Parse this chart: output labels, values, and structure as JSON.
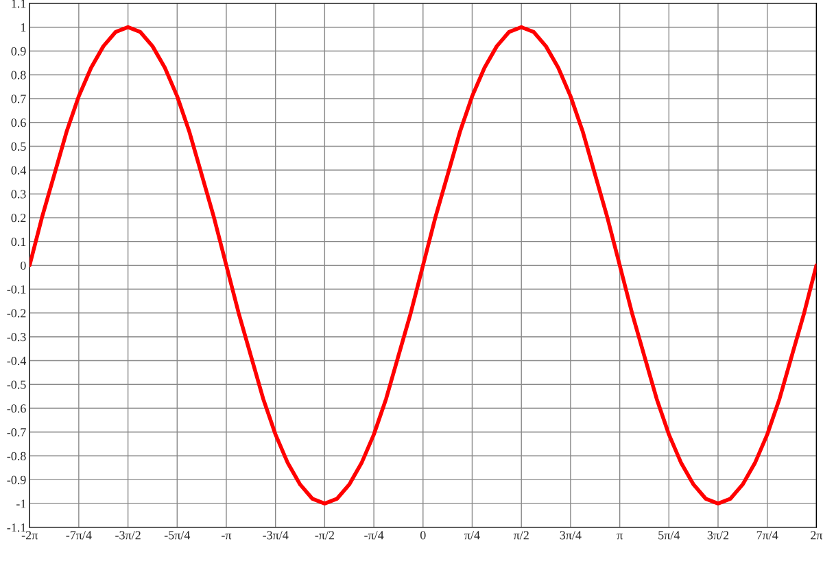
{
  "chart_data": {
    "type": "line",
    "x": [
      -6.283,
      -6.087,
      -5.89,
      -5.694,
      -5.498,
      -5.301,
      -5.105,
      -4.909,
      -4.712,
      -4.516,
      -4.32,
      -4.123,
      -3.927,
      -3.731,
      -3.534,
      -3.338,
      -3.142,
      -2.945,
      -2.749,
      -2.553,
      -2.356,
      -2.16,
      -1.963,
      -1.767,
      -1.571,
      -1.374,
      -1.178,
      -0.982,
      -0.785,
      -0.589,
      -0.393,
      -0.196,
      0,
      0.196,
      0.393,
      0.589,
      0.785,
      0.982,
      1.178,
      1.374,
      1.571,
      1.767,
      1.963,
      2.16,
      2.356,
      2.553,
      2.749,
      2.945,
      3.142,
      3.338,
      3.534,
      3.731,
      3.927,
      4.123,
      4.32,
      4.516,
      4.712,
      4.909,
      5.105,
      5.301,
      5.498,
      5.694,
      5.89,
      6.087,
      6.283
    ],
    "series": [
      {
        "color": "#ff0000",
        "values": [
          0,
          0.2,
          0.38,
          0.56,
          0.71,
          0.83,
          0.92,
          0.98,
          1,
          0.98,
          0.92,
          0.83,
          0.71,
          0.56,
          0.38,
          0.2,
          0,
          -0.2,
          -0.38,
          -0.56,
          -0.71,
          -0.83,
          -0.92,
          -0.98,
          -1,
          -0.98,
          -0.92,
          -0.83,
          -0.71,
          -0.56,
          -0.38,
          -0.2,
          0,
          0.2,
          0.38,
          0.56,
          0.71,
          0.83,
          0.92,
          0.98,
          1,
          0.98,
          0.92,
          0.83,
          0.71,
          0.56,
          0.38,
          0.2,
          0,
          -0.2,
          -0.38,
          -0.56,
          -0.71,
          -0.83,
          -0.92,
          -0.98,
          -1,
          -0.98,
          -0.92,
          -0.83,
          -0.71,
          -0.56,
          -0.38,
          -0.2,
          0
        ]
      }
    ],
    "xlim": [
      -6.283,
      6.283
    ],
    "xticks": [
      {
        "value": -6.283,
        "label": "-2π"
      },
      {
        "value": -5.498,
        "label": "-7π/4"
      },
      {
        "value": -4.712,
        "label": "-3π/2"
      },
      {
        "value": -3.927,
        "label": "-5π/4"
      },
      {
        "value": -3.142,
        "label": "-π"
      },
      {
        "value": -2.356,
        "label": "-3π/4"
      },
      {
        "value": -1.571,
        "label": "-π/2"
      },
      {
        "value": -0.785,
        "label": "-π/4"
      },
      0,
      {
        "value": 0.785,
        "label": "π/4"
      },
      {
        "value": 1.571,
        "label": "π/2"
      },
      {
        "value": 2.356,
        "label": "3π/4"
      },
      {
        "value": 3.142,
        "label": "π"
      },
      {
        "value": 3.927,
        "label": "5π/4"
      },
      {
        "value": 4.712,
        "label": "3π/2"
      },
      {
        "value": 5.498,
        "label": "7π/4"
      },
      {
        "value": 6.283,
        "label": "2π"
      }
    ],
    "ylim": [
      -1.1,
      1.1
    ],
    "yticks": [
      -1.1,
      -1,
      -0.9,
      -0.8,
      -0.7,
      -0.6,
      -0.5,
      -0.4,
      -0.3,
      -0.2,
      -0.1,
      0,
      0.1,
      0.2,
      0.3,
      0.4,
      0.5,
      0.6,
      0.7,
      0.8,
      0.9,
      1,
      1.1
    ],
    "grid": true,
    "line_style": "solid",
    "marker": "none"
  }
}
